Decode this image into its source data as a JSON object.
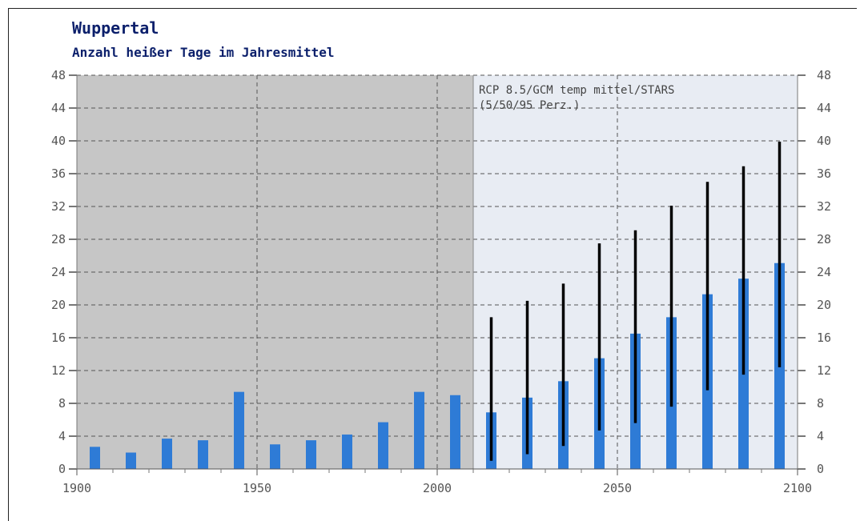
{
  "chart_data": {
    "type": "bar",
    "title": "Wuppertal",
    "subtitle": "Anzahl heißer Tage im Jahresmittel",
    "xlabel": "",
    "ylabel": "",
    "xlim": [
      1900,
      2100
    ],
    "ylim": [
      0,
      48
    ],
    "x_ticks": [
      "1900",
      "1950",
      "2000",
      "2050",
      "2100"
    ],
    "y_ticks": [
      "0",
      "4",
      "8",
      "12",
      "16",
      "20",
      "24",
      "28",
      "32",
      "36",
      "40",
      "44",
      "48"
    ],
    "grid": true,
    "observed_period": [
      1900,
      2010
    ],
    "annotation_line1": "RCP 8.5/GCM temp mittel/STARS",
    "annotation_line2": "(5/50/95 Perz.)",
    "colors": {
      "bar": "#2e7bd6",
      "observed_bg": "#c6c6c6",
      "projection_bg": "#e8ecf3",
      "range": "#000000"
    },
    "observed": {
      "x": [
        1905,
        1915,
        1925,
        1935,
        1945,
        1955,
        1965,
        1975,
        1985,
        1995,
        2005
      ],
      "values": [
        2.7,
        2.0,
        3.7,
        3.5,
        9.4,
        3.0,
        3.5,
        4.2,
        5.7,
        9.4,
        9.0
      ]
    },
    "projection": {
      "x": [
        2015,
        2025,
        2035,
        2045,
        2055,
        2065,
        2075,
        2085,
        2095
      ],
      "p50": [
        6.9,
        8.7,
        10.7,
        13.5,
        16.5,
        18.5,
        21.3,
        23.2,
        25.1
      ],
      "p5": [
        1.0,
        1.8,
        2.8,
        4.7,
        5.6,
        7.6,
        9.6,
        11.5,
        12.4
      ],
      "p95": [
        18.5,
        20.5,
        22.6,
        27.5,
        29.1,
        32.1,
        35.0,
        36.9,
        39.9
      ]
    }
  }
}
